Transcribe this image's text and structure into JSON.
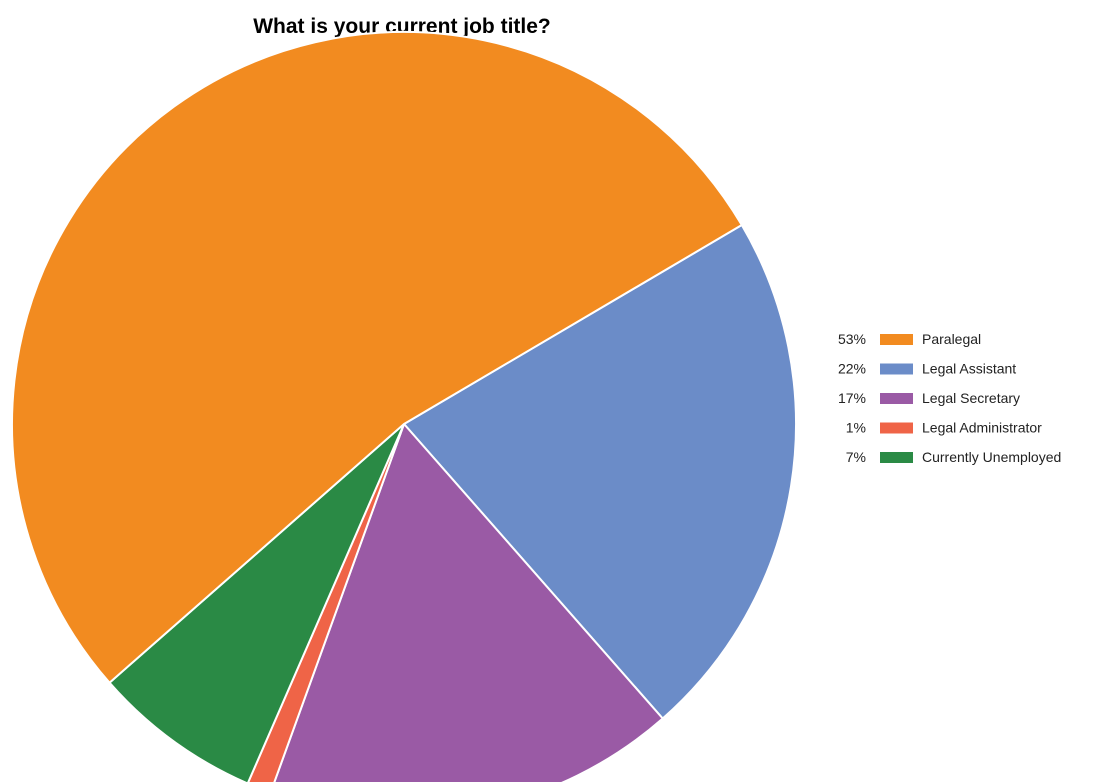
{
  "chart_data": {
    "type": "pie",
    "title": "What is your current job title?",
    "legend_position": "right",
    "slices": [
      {
        "label": "Paralegal",
        "value": 53,
        "percent_label": "53%",
        "color": "#f28b20"
      },
      {
        "label": "Legal Assistant",
        "value": 22,
        "percent_label": "22%",
        "color": "#6b8cc8"
      },
      {
        "label": "Legal Secretary",
        "value": 17,
        "percent_label": "17%",
        "color": "#9a5aa5"
      },
      {
        "label": "Legal Administrator",
        "value": 1,
        "percent_label": "1%",
        "color": "#ef6447"
      },
      {
        "label": "Currently Unemployed",
        "value": 7,
        "percent_label": "7%",
        "color": "#2a8a45"
      }
    ]
  }
}
